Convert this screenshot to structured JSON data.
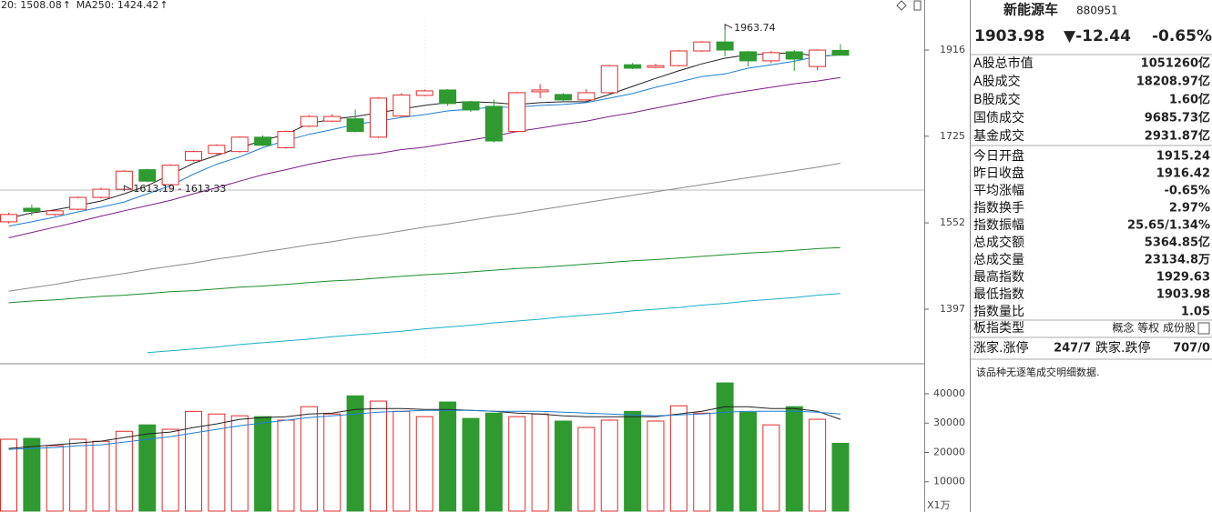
{
  "chart_data": [
    {
      "type": "candlestick",
      "header_labels": [
        {
          "text": "20: 1508.08",
          "color": "#2d6b2d"
        },
        {
          "text": "MA250: 1424.42",
          "color": "#1aaec4"
        }
      ],
      "trend_mark": "↑",
      "trend_color": "#e02020",
      "open": [
        1554,
        1580,
        1568,
        1578,
        1601,
        1617,
        1656,
        1626,
        1675,
        1689,
        1693,
        1723,
        1701,
        1746,
        1757,
        1762,
        1723,
        1768,
        1813,
        1825,
        1799,
        1789,
        1735,
        1821,
        1815,
        1803,
        1819,
        1882,
        1876,
        1880,
        1914,
        1935,
        1912,
        1891,
        1912,
        1878,
        1915.24
      ],
      "high": [
        1571,
        1587,
        1578,
        1603,
        1620,
        1655,
        1658,
        1667,
        1695,
        1708,
        1725,
        1727,
        1737,
        1770,
        1772,
        1782,
        1809,
        1818,
        1826,
        1827,
        1801,
        1804,
        1821,
        1838,
        1818,
        1827,
        1882,
        1886,
        1884,
        1916,
        1937,
        1963.74,
        1914,
        1914,
        1916,
        1918,
        1929.63
      ],
      "low": [
        1551,
        1566,
        1565,
        1576,
        1599,
        1615,
        1631,
        1624,
        1673,
        1687,
        1691,
        1704,
        1699,
        1744,
        1755,
        1733,
        1721,
        1766,
        1811,
        1790,
        1777,
        1712,
        1733,
        1807,
        1801,
        1801,
        1817,
        1872,
        1874,
        1878,
        1912,
        1901,
        1878,
        1886,
        1868,
        1870,
        1903.98
      ],
      "close": [
        1568,
        1574,
        1575,
        1601,
        1617,
        1653,
        1633,
        1665,
        1693,
        1706,
        1723,
        1706,
        1735,
        1767,
        1767,
        1735,
        1807,
        1814,
        1823,
        1795,
        1781,
        1715,
        1819,
        1825,
        1803,
        1819,
        1880,
        1874,
        1880,
        1914,
        1935,
        1916,
        1891,
        1910,
        1895,
        1916,
        1903.98
      ],
      "up_color": "#e02b2b",
      "down_color": "#2e9a30",
      "lines": [
        {
          "color": "#222222",
          "values": [
            1561,
            1571,
            1577,
            1585,
            1594,
            1608,
            1624,
            1646,
            1669,
            1685,
            1701,
            1716,
            1729,
            1752,
            1761,
            1767,
            1775,
            1783,
            1791,
            1797,
            1799,
            1797,
            1793,
            1797,
            1799,
            1799,
            1815,
            1833,
            1851,
            1868,
            1884,
            1897,
            1905,
            1907,
            1910,
            1901,
            1905
          ]
        },
        {
          "color": "#1f7fd0",
          "values": [
            1546,
            1554,
            1563,
            1573,
            1582,
            1592,
            1608,
            1624,
            1647,
            1667,
            1682,
            1701,
            1716,
            1729,
            1739,
            1750,
            1757,
            1765,
            1771,
            1779,
            1783,
            1787,
            1787,
            1791,
            1793,
            1797,
            1807,
            1817,
            1831,
            1843,
            1855,
            1861,
            1874,
            1882,
            1890,
            1901,
            1905
          ]
        },
        {
          "color": "#7a1f86",
          "values": [
            1524,
            1534,
            1544,
            1554,
            1565,
            1575,
            1585,
            1595,
            1608,
            1620,
            1633,
            1646,
            1656,
            1667,
            1676,
            1684,
            1689,
            1697,
            1702,
            1710,
            1717,
            1725,
            1735,
            1742,
            1750,
            1757,
            1767,
            1775,
            1785,
            1795,
            1805,
            1815,
            1823,
            1831,
            1839,
            1845,
            1853
          ]
        },
        {
          "color": "#8a8a8a",
          "values": [
            1428,
            1434,
            1440,
            1447,
            1453,
            1459,
            1466,
            1472,
            1478,
            1485,
            1491,
            1498,
            1504,
            1511,
            1517,
            1524,
            1530,
            1537,
            1544,
            1550,
            1557,
            1564,
            1570,
            1577,
            1584,
            1591,
            1598,
            1605,
            1612,
            1619,
            1626,
            1633,
            1640,
            1647,
            1654,
            1661,
            1669
          ]
        },
        {
          "color": "#1f8a2a",
          "values": [
            1408,
            1411,
            1413,
            1416,
            1419,
            1421,
            1424,
            1427,
            1429,
            1432,
            1435,
            1437,
            1440,
            1443,
            1446,
            1448,
            1451,
            1454,
            1457,
            1459,
            1462,
            1465,
            1468,
            1470,
            1473,
            1476,
            1479,
            1482,
            1484,
            1487,
            1490,
            1493,
            1496,
            1498,
            1501,
            1504,
            1506
          ]
        },
        {
          "color": "#1aaec4",
          "values": [
            null,
            null,
            null,
            null,
            null,
            null,
            1325,
            1328,
            1331,
            1334,
            1338,
            1341,
            1344,
            1347,
            1351,
            1354,
            1357,
            1360,
            1364,
            1367,
            1370,
            1374,
            1377,
            1380,
            1384,
            1387,
            1390,
            1394,
            1397,
            1400,
            1404,
            1407,
            1411,
            1414,
            1417,
            1421,
            1424
          ]
        }
      ],
      "annotations": [
        {
          "text": "1963.74",
          "value": 1963.74
        },
        {
          "text": "1613.19 - 1613.33",
          "value": 1613.19
        }
      ],
      "log_scale": true,
      "ylim": [
        1310,
        2003
      ],
      "yticks": [
        1916,
        1725,
        1552,
        1397
      ]
    },
    {
      "type": "bar",
      "values": [
        24500,
        24800,
        22300,
        24500,
        23800,
        27200,
        29400,
        27900,
        34000,
        33100,
        32500,
        32200,
        31000,
        35600,
        33100,
        39300,
        37500,
        34000,
        32200,
        37200,
        31600,
        33400,
        32200,
        33100,
        30700,
        28500,
        31000,
        34000,
        30700,
        35900,
        33400,
        43700,
        33700,
        29400,
        35600,
        31300,
        23100
      ],
      "up_color": "#e02b2b",
      "down_color": "#2e9a30",
      "lines": [
        {
          "color": "#222222",
          "values": [
            21360,
            21980,
            22600,
            23220,
            23840,
            25080,
            26320,
            26940,
            28480,
            29720,
            31270,
            31890,
            32200,
            33130,
            33440,
            34680,
            34990,
            34990,
            34680,
            34680,
            34370,
            34060,
            33440,
            33130,
            32510,
            32200,
            32200,
            32200,
            32200,
            33130,
            34060,
            35610,
            35610,
            34990,
            34990,
            34060,
            31270
          ]
        },
        {
          "color": "#1f7fd0",
          "values": [
            21050,
            21360,
            21670,
            22290,
            22600,
            23530,
            24460,
            25390,
            26630,
            27860,
            29100,
            30030,
            30960,
            31890,
            32510,
            33130,
            33750,
            34060,
            34370,
            34370,
            34370,
            34060,
            34060,
            34060,
            33750,
            33440,
            33130,
            32820,
            32510,
            32820,
            33130,
            33750,
            34060,
            34060,
            34060,
            33750,
            33130
          ]
        }
      ],
      "unit_label": "X1万",
      "ylim": [
        0,
        49300
      ],
      "yticks": [
        40000,
        30000,
        20000,
        10000
      ]
    }
  ],
  "quote": {
    "name": "新能源车",
    "code": "880951",
    "price": "1903.98",
    "change": "▼-12.44",
    "change_pct": "-0.65%",
    "color": "#2e9a30"
  },
  "stats": [
    [
      {
        "label": "A股总市值",
        "value": "1051260亿"
      },
      {
        "label": "A股成交",
        "value": "18208.97亿"
      },
      {
        "label": "B股成交",
        "value": "1.60亿"
      },
      {
        "label": "国债成交",
        "value": "9685.73亿"
      },
      {
        "label": "基金成交",
        "value": "2931.87亿"
      }
    ],
    [
      {
        "label": "今日开盘",
        "value": "1915.24",
        "color": "#2e9a30"
      },
      {
        "label": "昨日收盘",
        "value": "1916.42"
      },
      {
        "label": "平均涨幅",
        "value": "-0.65%",
        "color": "#2e9a30"
      },
      {
        "label": "指数换手",
        "value": "2.97%"
      },
      {
        "label": "指数振幅",
        "value": "25.65/1.34%"
      },
      {
        "label": "总成交额",
        "value": "5364.85亿"
      },
      {
        "label": "总成交量",
        "value": "23134.8万"
      },
      {
        "label": "最高指数",
        "value": "1929.63",
        "color": "#e02020"
      },
      {
        "label": "最低指数",
        "value": "1903.98",
        "color": "#2e9a30"
      },
      {
        "label": "指数量比",
        "value": "1.05",
        "color": "#e02020"
      }
    ],
    [
      {
        "label": "板指类型",
        "value": "概念 等权 成份股",
        "color": "#444444"
      }
    ]
  ],
  "breadth": {
    "up_label": "涨家.涨停",
    "up_value": "247/7",
    "up_color": "#e02020",
    "down_label": "跌家.跌停",
    "down_value": "707/0",
    "down_color": "#2e9a30"
  },
  "note": "该品种无逐笔成交明细数据."
}
